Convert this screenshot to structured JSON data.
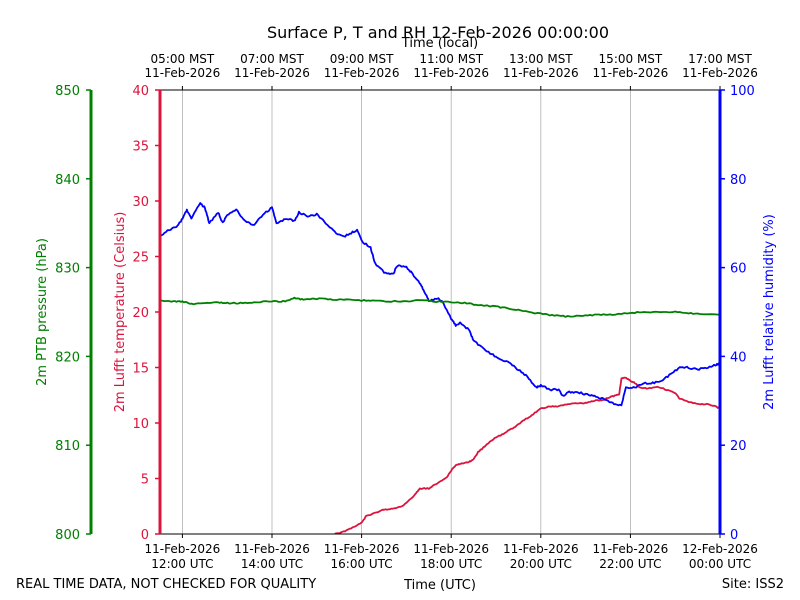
{
  "chart_data": {
    "type": "line",
    "title": "Surface P, T and RH 12-Feb-2026 00:00:00",
    "top_axis_label": "Time (local)",
    "xlabel": "Time (UTC)",
    "footer_left": "REAL TIME DATA, NOT CHECKED FOR QUALITY",
    "footer_right": "Site: ISS2",
    "x_range_hours": [
      11.5,
      24.0
    ],
    "bottom_ticks": [
      {
        "hour": 12,
        "line1": "11-Feb-2026",
        "line2": "12:00 UTC"
      },
      {
        "hour": 14,
        "line1": "11-Feb-2026",
        "line2": "14:00 UTC"
      },
      {
        "hour": 16,
        "line1": "11-Feb-2026",
        "line2": "16:00 UTC"
      },
      {
        "hour": 18,
        "line1": "11-Feb-2026",
        "line2": "18:00 UTC"
      },
      {
        "hour": 20,
        "line1": "11-Feb-2026",
        "line2": "20:00 UTC"
      },
      {
        "hour": 22,
        "line1": "11-Feb-2026",
        "line2": "22:00 UTC"
      },
      {
        "hour": 24,
        "line1": "12-Feb-2026",
        "line2": "00:00 UTC"
      }
    ],
    "top_ticks": [
      {
        "hour": 12,
        "line1": "05:00 MST",
        "line2": "11-Feb-2026"
      },
      {
        "hour": 14,
        "line1": "07:00 MST",
        "line2": "11-Feb-2026"
      },
      {
        "hour": 16,
        "line1": "09:00 MST",
        "line2": "11-Feb-2026"
      },
      {
        "hour": 18,
        "line1": "11:00 MST",
        "line2": "11-Feb-2026"
      },
      {
        "hour": 20,
        "line1": "13:00 MST",
        "line2": "11-Feb-2026"
      },
      {
        "hour": 22,
        "line1": "15:00 MST",
        "line2": "11-Feb-2026"
      },
      {
        "hour": 24,
        "line1": "17:00 MST",
        "line2": "11-Feb-2026"
      }
    ],
    "axes": {
      "pressure": {
        "label": "2m PTB pressure (hPa)",
        "ylim": [
          800,
          850
        ],
        "ticks": [
          800,
          810,
          820,
          830,
          840,
          850
        ],
        "color": "#008000"
      },
      "temperature": {
        "label": "2m Lufft temperature (Celsius)",
        "ylim": [
          0,
          40
        ],
        "ticks": [
          0,
          5,
          10,
          15,
          20,
          25,
          30,
          35,
          40
        ],
        "color": "#dc143c"
      },
      "humidity": {
        "label": "2m Lufft relative humidity (%)",
        "ylim": [
          0,
          100
        ],
        "ticks": [
          0,
          20,
          40,
          60,
          80,
          100
        ],
        "color": "#0000ff"
      }
    },
    "series": [
      {
        "name": "2m Lufft temperature",
        "axis": "temperature",
        "color": "#dc143c",
        "points": [
          [
            15.4,
            0.0
          ],
          [
            15.6,
            0.2
          ],
          [
            15.8,
            0.6
          ],
          [
            16.0,
            1.0
          ],
          [
            16.1,
            1.6
          ],
          [
            16.3,
            1.9
          ],
          [
            16.5,
            2.2
          ],
          [
            16.7,
            2.3
          ],
          [
            16.9,
            2.5
          ],
          [
            17.0,
            2.8
          ],
          [
            17.2,
            3.6
          ],
          [
            17.3,
            4.1
          ],
          [
            17.5,
            4.1
          ],
          [
            17.7,
            4.6
          ],
          [
            17.9,
            5.1
          ],
          [
            18.0,
            5.7
          ],
          [
            18.1,
            6.2
          ],
          [
            18.2,
            6.3
          ],
          [
            18.4,
            6.5
          ],
          [
            18.5,
            6.7
          ],
          [
            18.6,
            7.4
          ],
          [
            18.7,
            7.7
          ],
          [
            18.8,
            8.1
          ],
          [
            19.0,
            8.7
          ],
          [
            19.2,
            9.1
          ],
          [
            19.4,
            9.6
          ],
          [
            19.6,
            10.2
          ],
          [
            19.8,
            10.7
          ],
          [
            20.0,
            11.3
          ],
          [
            20.2,
            11.5
          ],
          [
            20.4,
            11.5
          ],
          [
            20.6,
            11.7
          ],
          [
            20.8,
            11.8
          ],
          [
            21.0,
            11.8
          ],
          [
            21.2,
            12.0
          ],
          [
            21.4,
            12.1
          ],
          [
            21.6,
            12.4
          ],
          [
            21.75,
            12.6
          ],
          [
            21.8,
            14.0
          ],
          [
            21.9,
            14.1
          ],
          [
            22.0,
            13.8
          ],
          [
            22.1,
            13.6
          ],
          [
            22.2,
            13.2
          ],
          [
            22.4,
            13.1
          ],
          [
            22.6,
            13.3
          ],
          [
            22.8,
            13.0
          ],
          [
            23.0,
            12.7
          ],
          [
            23.1,
            12.2
          ],
          [
            23.3,
            11.9
          ],
          [
            23.5,
            11.7
          ],
          [
            23.7,
            11.7
          ],
          [
            23.9,
            11.5
          ],
          [
            24.0,
            11.3
          ]
        ]
      },
      {
        "name": "2m Lufft relative humidity",
        "axis": "humidity",
        "color": "#0000ff",
        "points": [
          [
            11.5,
            67.0
          ],
          [
            11.7,
            68.5
          ],
          [
            11.9,
            69.5
          ],
          [
            12.0,
            71.0
          ],
          [
            12.1,
            73.0
          ],
          [
            12.2,
            71.0
          ],
          [
            12.4,
            74.5
          ],
          [
            12.5,
            73.5
          ],
          [
            12.6,
            70.0
          ],
          [
            12.8,
            72.5
          ],
          [
            12.9,
            70.0
          ],
          [
            13.0,
            72.0
          ],
          [
            13.2,
            73.0
          ],
          [
            13.4,
            70.5
          ],
          [
            13.6,
            69.5
          ],
          [
            13.8,
            72.0
          ],
          [
            14.0,
            73.5
          ],
          [
            14.1,
            70.0
          ],
          [
            14.3,
            71.0
          ],
          [
            14.5,
            70.5
          ],
          [
            14.6,
            72.5
          ],
          [
            14.8,
            71.5
          ],
          [
            15.0,
            72.0
          ],
          [
            15.2,
            70.0
          ],
          [
            15.4,
            68.0
          ],
          [
            15.6,
            67.0
          ],
          [
            15.8,
            68.0
          ],
          [
            15.9,
            68.5
          ],
          [
            16.0,
            66.0
          ],
          [
            16.2,
            64.5
          ],
          [
            16.3,
            61.0
          ],
          [
            16.5,
            59.0
          ],
          [
            16.7,
            58.5
          ],
          [
            16.8,
            60.5
          ],
          [
            17.0,
            60.0
          ],
          [
            17.1,
            59.0
          ],
          [
            17.3,
            56.5
          ],
          [
            17.4,
            54.5
          ],
          [
            17.5,
            52.5
          ],
          [
            17.7,
            53.0
          ],
          [
            17.8,
            52.5
          ],
          [
            18.0,
            48.5
          ],
          [
            18.1,
            47.0
          ],
          [
            18.2,
            47.5
          ],
          [
            18.4,
            46.0
          ],
          [
            18.5,
            43.5
          ],
          [
            18.7,
            42.0
          ],
          [
            18.9,
            40.5
          ],
          [
            19.1,
            39.5
          ],
          [
            19.3,
            38.5
          ],
          [
            19.5,
            37.0
          ],
          [
            19.7,
            35.5
          ],
          [
            19.9,
            33.0
          ],
          [
            20.0,
            33.5
          ],
          [
            20.2,
            32.5
          ],
          [
            20.4,
            32.5
          ],
          [
            20.5,
            31.0
          ],
          [
            20.6,
            32.0
          ],
          [
            20.8,
            32.0
          ],
          [
            21.0,
            31.5
          ],
          [
            21.2,
            31.0
          ],
          [
            21.4,
            30.5
          ],
          [
            21.6,
            29.5
          ],
          [
            21.8,
            29.0
          ],
          [
            21.9,
            33.0
          ],
          [
            22.1,
            33.0
          ],
          [
            22.3,
            34.0
          ],
          [
            22.5,
            34.0
          ],
          [
            22.7,
            34.5
          ],
          [
            22.9,
            36.0
          ],
          [
            23.1,
            37.5
          ],
          [
            23.3,
            37.5
          ],
          [
            23.5,
            37.0
          ],
          [
            23.7,
            37.5
          ],
          [
            23.9,
            38.0
          ],
          [
            24.0,
            38.5
          ]
        ]
      },
      {
        "name": "2m PTB pressure",
        "axis": "pressure",
        "color": "#008000",
        "points": [
          [
            11.5,
            826.3
          ],
          [
            11.8,
            826.2
          ],
          [
            12.0,
            826.2
          ],
          [
            12.2,
            825.9
          ],
          [
            12.5,
            826.0
          ],
          [
            12.8,
            826.1
          ],
          [
            13.0,
            826.0
          ],
          [
            13.3,
            826.0
          ],
          [
            13.6,
            826.1
          ],
          [
            14.0,
            826.2
          ],
          [
            14.3,
            826.2
          ],
          [
            14.5,
            826.6
          ],
          [
            14.7,
            826.4
          ],
          [
            15.0,
            826.5
          ],
          [
            15.3,
            826.4
          ],
          [
            15.6,
            826.4
          ],
          [
            16.0,
            826.3
          ],
          [
            16.3,
            826.3
          ],
          [
            16.6,
            826.2
          ],
          [
            17.0,
            826.2
          ],
          [
            17.3,
            826.3
          ],
          [
            17.6,
            826.2
          ],
          [
            18.0,
            826.1
          ],
          [
            18.3,
            826.0
          ],
          [
            18.6,
            825.8
          ],
          [
            19.0,
            825.6
          ],
          [
            19.3,
            825.4
          ],
          [
            19.6,
            825.1
          ],
          [
            20.0,
            824.8
          ],
          [
            20.3,
            824.6
          ],
          [
            20.6,
            824.5
          ],
          [
            21.0,
            824.6
          ],
          [
            21.3,
            824.7
          ],
          [
            21.6,
            824.7
          ],
          [
            22.0,
            824.9
          ],
          [
            22.3,
            825.0
          ],
          [
            22.6,
            825.0
          ],
          [
            23.0,
            825.0
          ],
          [
            23.3,
            824.9
          ],
          [
            23.6,
            824.7
          ],
          [
            24.0,
            824.7
          ]
        ]
      }
    ]
  }
}
